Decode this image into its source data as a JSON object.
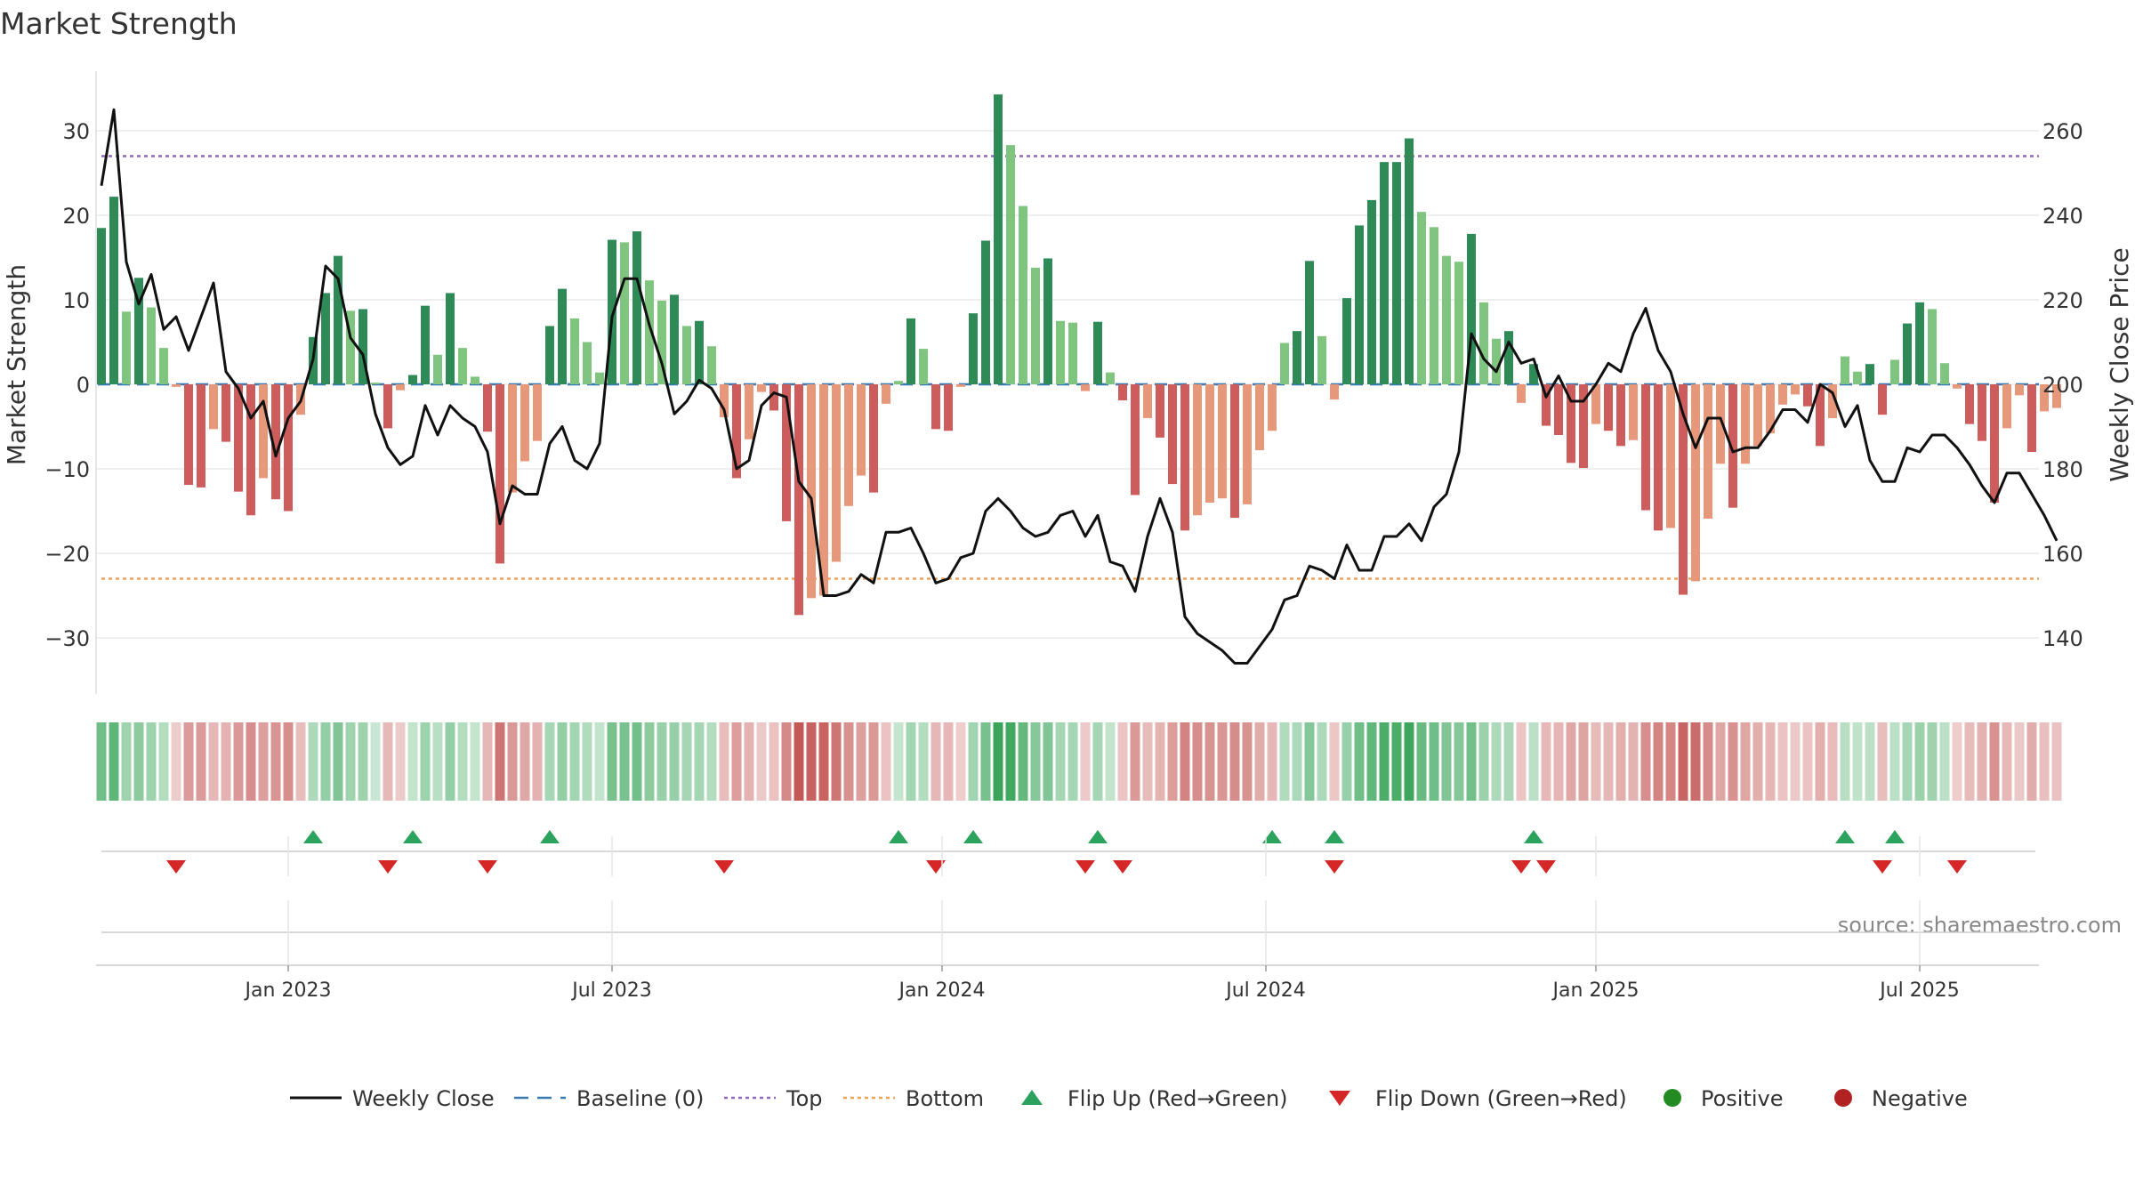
{
  "chart_data": {
    "type": "bar",
    "title": "Market Strength",
    "ylabel": "Market Strength",
    "ylabel_right": "Weekly Close Price",
    "source": "source: sharemaestro.com",
    "ylim": [
      -37,
      37
    ],
    "ylim_right": [
      124,
      268
    ],
    "y_ticks": [
      30,
      20,
      10,
      0,
      -10,
      -20,
      -30
    ],
    "y_tick_labels": [
      "30",
      "20",
      "10",
      "0",
      "−10",
      "−20",
      "−30"
    ],
    "y_right_ticks": [
      260,
      240,
      220,
      200,
      180,
      160,
      140
    ],
    "y_right_tick_labels": [
      "260",
      "240",
      "220",
      "200",
      "180",
      "160",
      "140"
    ],
    "x_tick_labels": [
      "Jan 2023",
      "Jul 2023",
      "Jan 2024",
      "Jul 2024",
      "Jan 2025",
      "Jul 2025"
    ],
    "x_tick_weeks": [
      15,
      41,
      67.5,
      93.5,
      120,
      146
    ],
    "top_line": 27,
    "bottom_line": -23,
    "week_start": "2022-10-07",
    "strength": [
      18.5,
      22.2,
      8.6,
      12.6,
      9.1,
      4.3,
      -0.3,
      -11.9,
      -12.2,
      -5.3,
      -6.8,
      -12.7,
      -15.5,
      -11.1,
      -13.6,
      -15.0,
      -3.6,
      5.6,
      10.8,
      15.2,
      8.7,
      8.9,
      0.2,
      -5.2,
      -0.7,
      1.1,
      9.3,
      3.5,
      10.8,
      4.3,
      0.9,
      -5.6,
      -21.2,
      -12.8,
      -9.1,
      -6.7,
      6.9,
      11.3,
      7.8,
      5.0,
      1.4,
      17.1,
      16.8,
      18.1,
      12.3,
      9.9,
      10.6,
      6.9,
      7.5,
      4.5,
      -3.9,
      -11.1,
      -6.5,
      -0.9,
      -3.1,
      -16.2,
      -27.3,
      -25.3,
      -25.0,
      -21.0,
      -14.4,
      -10.8,
      -12.8,
      -2.3,
      0.4,
      7.8,
      4.2,
      -5.3,
      -5.5,
      -0.3,
      8.4,
      17.0,
      34.3,
      28.3,
      21.1,
      13.8,
      14.9,
      7.5,
      7.3,
      -0.8,
      7.4,
      1.4,
      -1.9,
      -13.1,
      -4.0,
      -6.3,
      -11.8,
      -17.3,
      -15.5,
      -14.0,
      -13.5,
      -15.8,
      -14.2,
      -7.8,
      -5.5,
      4.9,
      6.3,
      14.6,
      5.7,
      -1.8,
      10.2,
      18.8,
      21.8,
      26.3,
      26.3,
      29.1,
      20.4,
      18.6,
      15.2,
      14.5,
      17.8,
      9.7,
      5.4,
      6.3,
      -2.2,
      2.4,
      -4.9,
      -6.0,
      -9.3,
      -9.9,
      -4.7,
      -5.5,
      -7.3,
      -6.6,
      -14.9,
      -17.3,
      -17.0,
      -24.9,
      -23.3,
      -15.9,
      -9.4,
      -14.6,
      -9.4,
      -7.3,
      -5.8,
      -2.4,
      -1.2,
      -2.6,
      -7.3,
      -4.0,
      3.3,
      1.5,
      2.4,
      -3.6,
      2.9,
      7.2,
      9.7,
      8.9,
      2.5,
      -0.5,
      -4.7,
      -6.7,
      -14.0,
      -5.2,
      -1.3,
      -8.0,
      -3.2,
      -2.8
    ],
    "close": [
      247,
      265,
      229,
      219,
      226,
      213,
      216,
      208,
      216,
      224,
      203,
      199,
      192,
      196,
      183,
      192,
      196,
      206,
      228,
      225,
      211,
      207,
      193,
      185,
      181,
      183,
      195,
      188,
      195,
      192,
      190,
      184,
      167,
      176,
      174,
      174,
      186,
      190,
      182,
      180,
      186,
      216,
      225,
      225,
      214,
      205,
      193,
      196,
      201,
      199,
      194,
      180,
      182,
      195,
      198,
      197,
      177,
      173,
      150,
      150,
      151,
      155,
      153,
      165,
      165,
      166,
      160,
      153,
      154,
      159,
      160,
      170,
      173,
      170,
      166,
      164,
      165,
      169,
      170,
      164,
      169,
      158,
      157,
      151,
      164,
      173,
      165,
      145,
      141,
      139,
      137,
      134,
      134,
      138,
      142,
      149,
      150,
      157,
      156,
      154,
      162,
      156,
      156,
      164,
      164,
      167,
      163,
      171,
      174,
      184,
      212,
      206,
      203,
      210,
      205,
      206,
      197,
      202,
      196,
      196,
      200,
      205,
      203,
      212,
      218,
      208,
      203,
      193,
      185,
      192,
      192,
      184,
      185,
      185,
      189,
      194,
      194,
      191,
      200,
      198,
      190,
      195,
      182,
      177,
      177,
      185,
      184,
      188,
      188,
      185,
      181,
      176,
      172,
      179,
      179,
      174,
      169,
      163
    ],
    "flip_up_weeks": [
      17,
      25,
      36,
      64,
      70,
      80,
      94,
      99,
      115,
      140,
      144
    ],
    "flip_down_weeks": [
      6,
      23,
      31,
      50,
      67,
      79,
      82,
      99,
      114,
      116,
      143,
      149
    ],
    "legend": [
      {
        "name": "Weekly Close",
        "symbol": "line",
        "color": "#111111"
      },
      {
        "name": "Baseline (0)",
        "symbol": "dashed",
        "color": "#3a7ab0"
      },
      {
        "name": "Top",
        "symbol": "dotted",
        "color": "#9467bd"
      },
      {
        "name": "Bottom",
        "symbol": "dotted",
        "color": "#e7a35a"
      },
      {
        "name": "Flip Up (Red→Green)",
        "symbol": "tri-up",
        "color": "#2ca25f"
      },
      {
        "name": "Flip Down (Green→Red)",
        "symbol": "tri-down",
        "color": "#d62728"
      },
      {
        "name": "Positive",
        "symbol": "dot",
        "color": "#228b22"
      },
      {
        "name": "Negative",
        "symbol": "dot",
        "color": "#b22222"
      }
    ]
  },
  "colors": {
    "green_strong": "#2e8b57",
    "green_light": "#7fc47f",
    "red_strong": "#cd5c5c",
    "red_light": "#e8987a",
    "top_line": "#9467bd",
    "bottom_line": "#e7a35a",
    "baseline": "#3a7ab0",
    "close_line": "#111111",
    "grid": "#e9e9e9"
  }
}
